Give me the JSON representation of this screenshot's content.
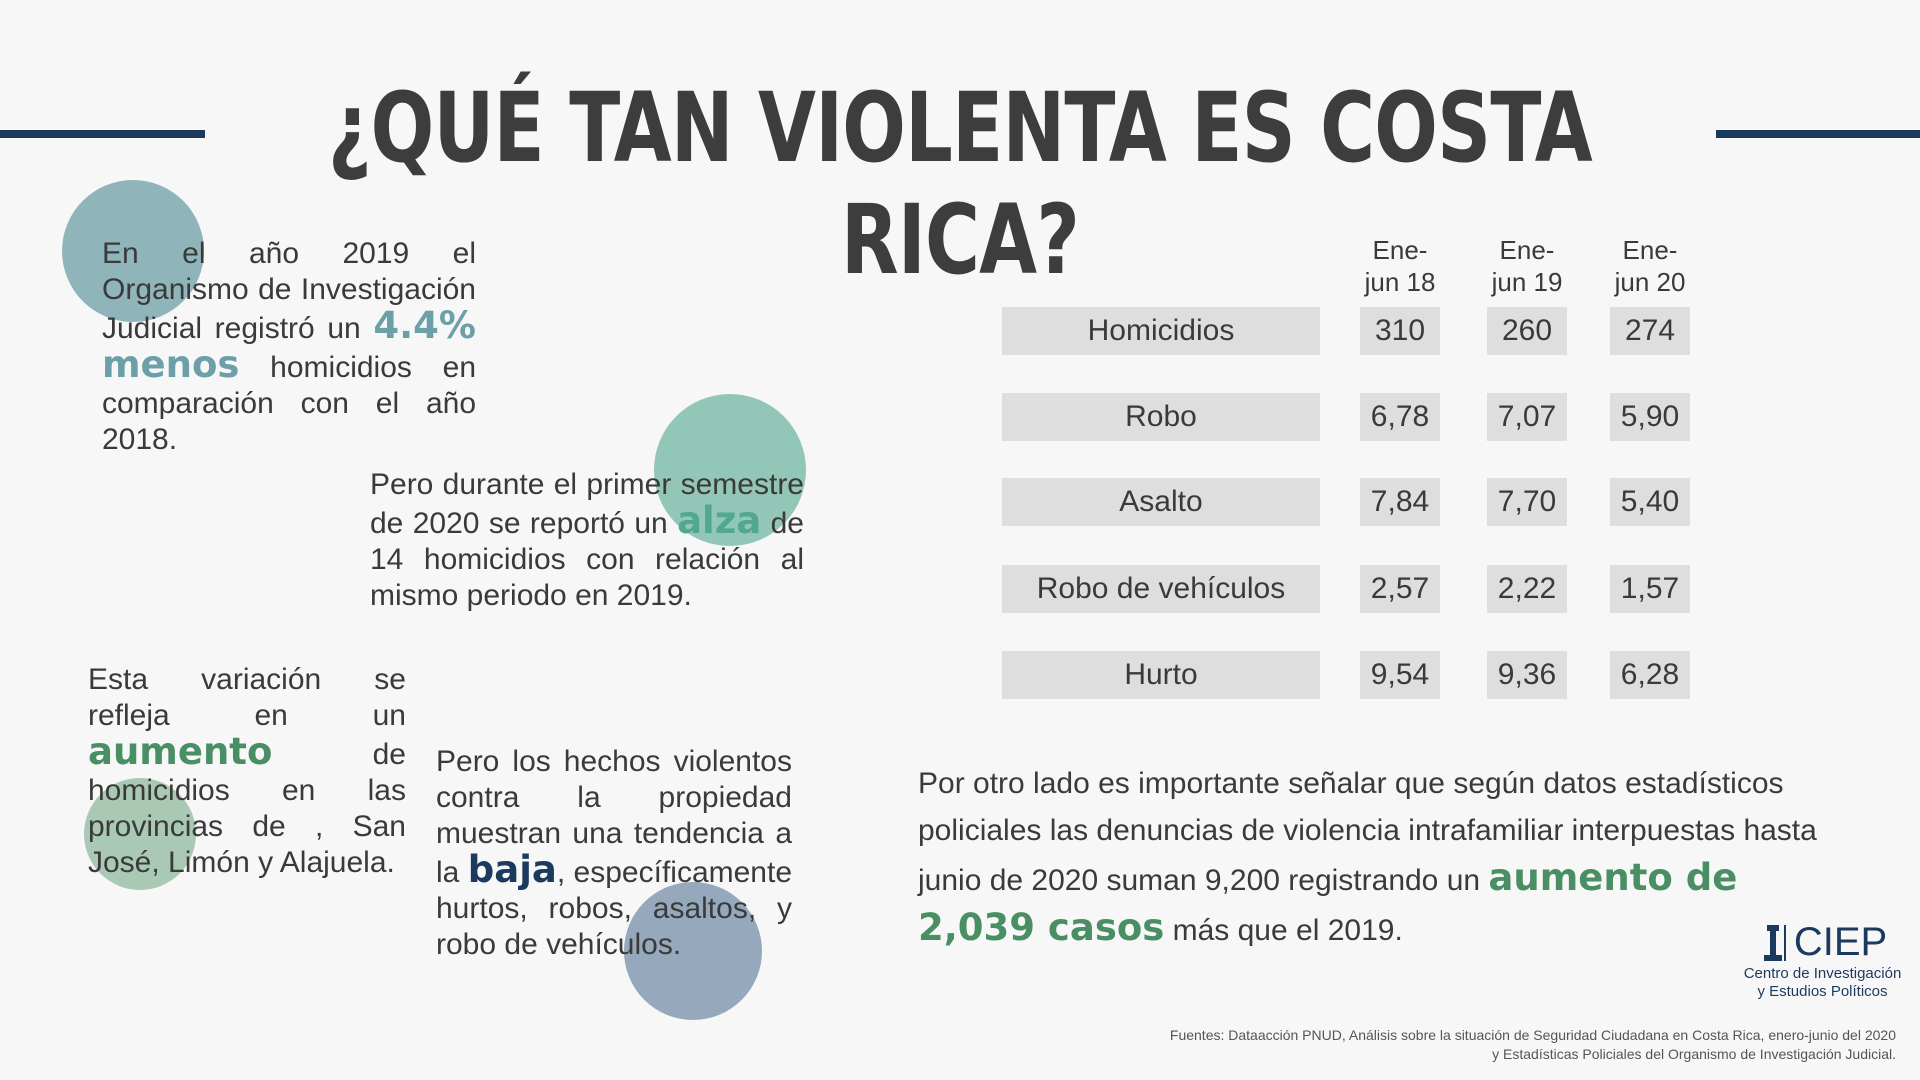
{
  "title": "¿QUÉ TAN VIOLENTA ES COSTA RICA?",
  "colors": {
    "accent_navy": "#1c3a5e",
    "teal_blue": "#6d9fa8",
    "teal_green": "#4fa88f",
    "green": "#4a8f64",
    "navy_text": "#1c3a5e"
  },
  "para1": {
    "before": "En el año 2019 el Organismo de Investigación Judicial registró un ",
    "highlight": "4.4% menos",
    "after": " homicidios en comparación con el año 2018."
  },
  "para2": {
    "before": "Pero durante el primer semestre de 2020 se reportó un ",
    "highlight": "alza",
    "after": " de 14 homicidios con relación al mismo periodo en 2019."
  },
  "para3": {
    "before": "Esta variación se refleja en un ",
    "highlight": "aumento",
    "after": " de homicidios en las provincias de , San José, Limón y Alajuela."
  },
  "para4": {
    "before": "Pero los hechos violentos contra la propiedad muestran una tendencia a la ",
    "highlight": "baja",
    "after": ", específicamente hurtos, robos, asaltos, y robo de vehículos."
  },
  "table": {
    "headers": [
      "Ene-\njun 18",
      "Ene-\njun 19",
      "Ene-\njun 20"
    ],
    "rows": [
      {
        "label": "Homicidios",
        "values": [
          "310",
          "260",
          "274"
        ]
      },
      {
        "label": "Robo",
        "values": [
          "6,78",
          "7,07",
          "5,90"
        ]
      },
      {
        "label": "Asalto",
        "values": [
          "7,84",
          "7,70",
          "5,40"
        ]
      },
      {
        "label": "Robo de vehículos",
        "values": [
          "2,57",
          "2,22",
          "1,57"
        ]
      },
      {
        "label": "Hurto",
        "values": [
          "9,54",
          "9,36",
          "6,28"
        ]
      }
    ]
  },
  "note": {
    "before": "Por otro lado es importante señalar que según datos estadísticos policiales  las denuncias de violencia intrafamiliar interpuestas hasta junio de 2020 suman 9,200 registrando un ",
    "highlight": "aumento de 2,039 casos",
    "after": " más que el  2019."
  },
  "logo": {
    "name": "CIEP",
    "line1": "Centro de Investigación",
    "line2": "y Estudios Políticos"
  },
  "sources": {
    "line1": "Fuentes: Dataacción PNUD, Análisis sobre la situación de Seguridad Ciudadana en Costa Rica, enero-junio del 2020",
    "line2": "y Estadísticas Policiales del Organismo de Investigación Judicial."
  }
}
